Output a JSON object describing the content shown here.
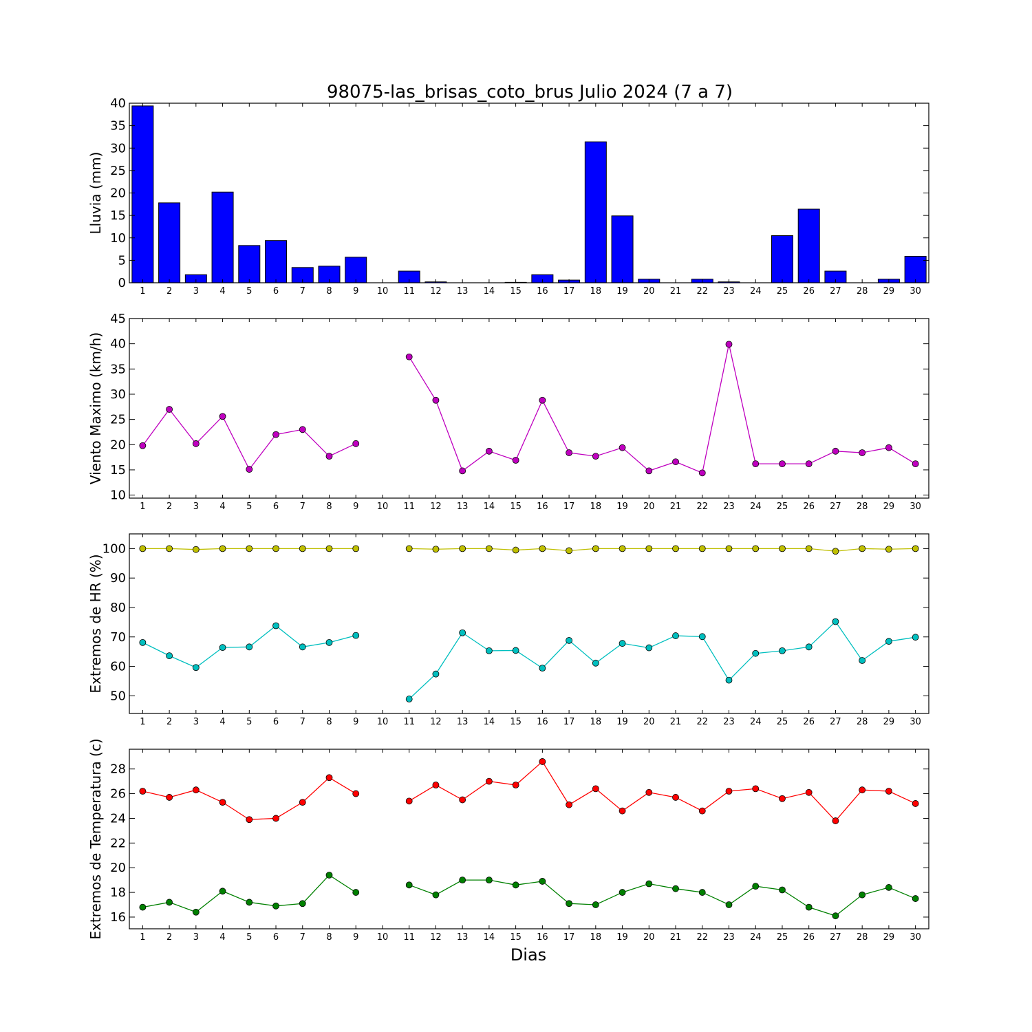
{
  "figure": {
    "title": "98075-las_brisas_coto_brus Julio 2024  (7 a 7)",
    "xlabel": "Dias"
  },
  "chart_data": [
    {
      "type": "bar",
      "ylabel": "Lluvia (mm)",
      "x": [
        1,
        2,
        3,
        4,
        5,
        6,
        7,
        8,
        9,
        10,
        11,
        12,
        13,
        14,
        15,
        16,
        17,
        18,
        19,
        20,
        21,
        22,
        23,
        24,
        25,
        26,
        27,
        28,
        29,
        30
      ],
      "xlim": [
        0.5,
        30.5
      ],
      "ylim": [
        0,
        40
      ],
      "yticks": [
        0,
        5,
        10,
        15,
        20,
        25,
        30,
        35,
        40
      ],
      "series": [
        {
          "color": "#0000ff",
          "values": [
            39.4,
            17.8,
            1.8,
            20.2,
            8.3,
            9.4,
            3.4,
            3.7,
            5.7,
            0,
            2.6,
            0.2,
            0,
            0,
            0.1,
            1.8,
            0.6,
            31.4,
            14.9,
            0.8,
            0,
            0.8,
            0.2,
            0,
            10.5,
            16.4,
            2.6,
            0,
            0.8,
            5.9
          ]
        }
      ]
    },
    {
      "type": "line",
      "ylabel": "Viento Maximo (km/h)",
      "x": [
        1,
        2,
        3,
        4,
        5,
        6,
        7,
        8,
        9,
        10,
        11,
        12,
        13,
        14,
        15,
        16,
        17,
        18,
        19,
        20,
        21,
        22,
        23,
        24,
        25,
        26,
        27,
        28,
        29,
        30
      ],
      "xlim": [
        0.5,
        30.5
      ],
      "ylim": [
        9.4,
        45
      ],
      "yticks": [
        10,
        15,
        20,
        25,
        30,
        35,
        40,
        45
      ],
      "series": [
        {
          "color": "#bf00bf",
          "values": [
            19.8,
            27.0,
            20.2,
            25.6,
            15.1,
            22.0,
            23.0,
            17.7,
            20.2,
            null,
            37.4,
            28.8,
            14.8,
            18.7,
            16.9,
            28.8,
            18.4,
            17.7,
            19.4,
            14.8,
            16.6,
            14.4,
            39.9,
            16.2,
            16.2,
            16.2,
            18.7,
            18.4,
            19.4,
            16.2
          ]
        }
      ]
    },
    {
      "type": "line",
      "ylabel": "Extremos de HR (%)",
      "x": [
        1,
        2,
        3,
        4,
        5,
        6,
        7,
        8,
        9,
        10,
        11,
        12,
        13,
        14,
        15,
        16,
        17,
        18,
        19,
        20,
        21,
        22,
        23,
        24,
        25,
        26,
        27,
        28,
        29,
        30
      ],
      "xlim": [
        0.5,
        30.5
      ],
      "ylim": [
        44,
        105
      ],
      "yticks": [
        50,
        60,
        70,
        80,
        90,
        100
      ],
      "series": [
        {
          "color": "#bfbf00",
          "values": [
            100,
            100,
            99.7,
            100,
            100,
            100,
            100,
            100,
            100,
            null,
            100,
            99.8,
            100,
            100,
            99.5,
            100,
            99.3,
            100,
            100,
            100,
            100,
            100,
            100,
            100,
            100,
            100,
            99.1,
            100,
            99.8,
            100
          ]
        },
        {
          "color": "#00bfbf",
          "values": [
            68.1,
            63.6,
            59.6,
            66.4,
            66.6,
            73.8,
            66.6,
            68.1,
            70.5,
            null,
            48.9,
            57.4,
            71.4,
            65.3,
            65.4,
            59.4,
            68.8,
            61.1,
            67.8,
            66.3,
            70.4,
            70.1,
            55.3,
            64.4,
            65.3,
            66.6,
            75.2,
            62.0,
            68.5,
            69.9
          ]
        }
      ]
    },
    {
      "type": "line",
      "ylabel": "Extremos de Temperatura (c)",
      "x": [
        1,
        2,
        3,
        4,
        5,
        6,
        7,
        8,
        9,
        10,
        11,
        12,
        13,
        14,
        15,
        16,
        17,
        18,
        19,
        20,
        21,
        22,
        23,
        24,
        25,
        26,
        27,
        28,
        29,
        30
      ],
      "xlim": [
        0.5,
        30.5
      ],
      "ylim": [
        15.05,
        29.6
      ],
      "yticks": [
        16,
        18,
        20,
        22,
        24,
        26,
        28
      ],
      "series": [
        {
          "color": "#ff0000",
          "values": [
            26.2,
            25.7,
            26.3,
            25.3,
            23.9,
            24.0,
            25.3,
            27.3,
            26.0,
            null,
            25.4,
            26.7,
            25.5,
            27.0,
            26.7,
            28.6,
            25.1,
            26.4,
            24.6,
            26.1,
            25.7,
            24.6,
            26.2,
            26.4,
            25.6,
            26.1,
            23.8,
            26.3,
            26.2,
            25.2
          ]
        },
        {
          "color": "#008000",
          "values": [
            16.8,
            17.2,
            16.4,
            18.1,
            17.2,
            16.9,
            17.1,
            19.4,
            18.0,
            null,
            18.6,
            17.8,
            19.0,
            19.0,
            18.6,
            18.9,
            17.1,
            17.0,
            18.0,
            18.7,
            18.3,
            18.0,
            17.0,
            18.5,
            18.2,
            16.8,
            16.1,
            17.8,
            18.4,
            17.5
          ]
        }
      ]
    }
  ]
}
